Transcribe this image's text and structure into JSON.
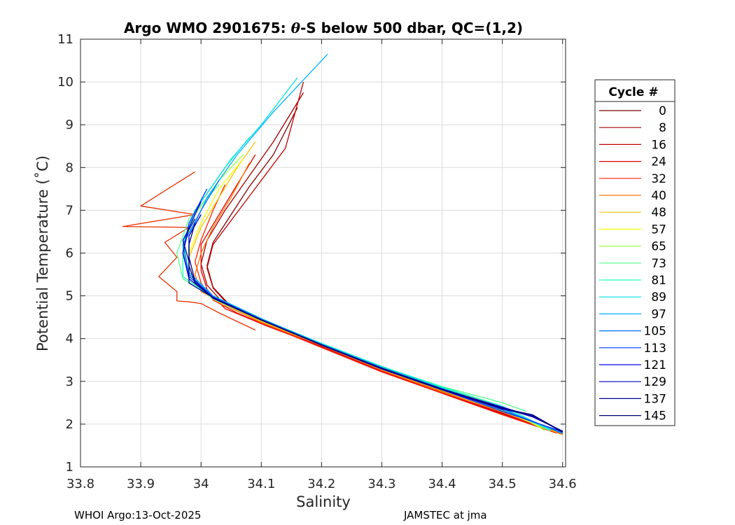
{
  "chart_data": {
    "type": "line",
    "title_parts": [
      "Argo WMO 2901675: ",
      "θ",
      "-S below 500 dbar,  QC=(1,2)"
    ],
    "xlabel": "Salinity",
    "ylabel": "Potential Temperature (˚C)",
    "xlim": [
      33.8,
      34.605
    ],
    "ylim": [
      1,
      11
    ],
    "xticks": [
      33.8,
      33.9,
      34.0,
      34.1,
      34.2,
      34.3,
      34.4,
      34.5,
      34.6
    ],
    "xtick_labels": [
      "33.8",
      "33.9",
      "34",
      "34.1",
      "34.2",
      "34.3",
      "34.4",
      "34.5",
      "34.6"
    ],
    "yticks": [
      1,
      2,
      3,
      4,
      5,
      6,
      7,
      8,
      9,
      10,
      11
    ],
    "ytick_labels": [
      "1",
      "2",
      "3",
      "4",
      "5",
      "6",
      "7",
      "8",
      "9",
      "10",
      "11"
    ],
    "grid": true,
    "legend": {
      "title": "Cycle #",
      "placement": "outside-right",
      "entries": [
        {
          "label": "0",
          "color": "#7f0000"
        },
        {
          "label": "8",
          "color": "#a10000"
        },
        {
          "label": "16",
          "color": "#c20000"
        },
        {
          "label": "24",
          "color": "#e40000"
        },
        {
          "label": "32",
          "color": "#ff2200"
        },
        {
          "label": "40",
          "color": "#ff7700"
        },
        {
          "label": "48",
          "color": "#ffc400"
        },
        {
          "label": "57",
          "color": "#f2ff00"
        },
        {
          "label": "65",
          "color": "#a2ff4a"
        },
        {
          "label": "73",
          "color": "#55ff8a"
        },
        {
          "label": "81",
          "color": "#1effbe"
        },
        {
          "label": "89",
          "color": "#00e3e3"
        },
        {
          "label": "97",
          "color": "#00b0ff"
        },
        {
          "label": "105",
          "color": "#0070ff"
        },
        {
          "label": "113",
          "color": "#0034ff"
        },
        {
          "label": "121",
          "color": "#0000e8"
        },
        {
          "label": "129",
          "color": "#0000c0"
        },
        {
          "label": "137",
          "color": "#00009a"
        },
        {
          "label": "145",
          "color": "#000070"
        }
      ]
    },
    "series": [
      {
        "color": "#7f0000",
        "points": [
          [
            34.6,
            1.76
          ],
          [
            34.5,
            2.23
          ],
          [
            34.4,
            2.73
          ],
          [
            34.3,
            3.23
          ],
          [
            34.2,
            3.8
          ],
          [
            34.12,
            4.3
          ],
          [
            34.05,
            4.75
          ],
          [
            34.02,
            5.2
          ],
          [
            34.01,
            5.7
          ],
          [
            34.02,
            6.25
          ],
          [
            34.05,
            6.9
          ],
          [
            34.08,
            7.55
          ],
          [
            34.12,
            8.3
          ],
          [
            34.16,
            9.4
          ]
        ]
      },
      {
        "color": "#a10000",
        "points": [
          [
            34.6,
            1.78
          ],
          [
            34.5,
            2.26
          ],
          [
            34.4,
            2.76
          ],
          [
            34.3,
            3.26
          ],
          [
            34.2,
            3.83
          ],
          [
            34.11,
            4.32
          ],
          [
            34.04,
            4.78
          ],
          [
            34.01,
            5.25
          ],
          [
            34.0,
            5.75
          ],
          [
            34.01,
            6.3
          ],
          [
            34.04,
            7.0
          ],
          [
            34.08,
            7.8
          ],
          [
            34.12,
            8.6
          ],
          [
            34.17,
            9.75
          ]
        ]
      },
      {
        "color": "#c20000",
        "points": [
          [
            34.59,
            1.8
          ],
          [
            34.5,
            2.25
          ],
          [
            34.4,
            2.74
          ],
          [
            34.3,
            3.24
          ],
          [
            34.2,
            3.82
          ],
          [
            34.12,
            4.28
          ],
          [
            34.05,
            4.72
          ],
          [
            34.02,
            5.18
          ],
          [
            34.01,
            5.65
          ],
          [
            34.02,
            6.2
          ],
          [
            34.06,
            6.95
          ],
          [
            34.1,
            7.7
          ],
          [
            34.14,
            8.45
          ],
          [
            34.17,
            10.0
          ]
        ]
      },
      {
        "color": "#e40000",
        "points": [
          [
            34.6,
            1.77
          ],
          [
            34.5,
            2.24
          ],
          [
            34.4,
            2.75
          ],
          [
            34.3,
            3.25
          ],
          [
            34.2,
            3.81
          ],
          [
            34.11,
            4.29
          ],
          [
            34.04,
            4.7
          ],
          [
            34.01,
            5.15
          ],
          [
            34.0,
            5.6
          ],
          [
            34.0,
            6.2
          ],
          [
            34.03,
            6.9
          ],
          [
            34.06,
            7.6
          ],
          [
            34.09,
            8.3
          ]
        ]
      },
      {
        "color": "#ff2200",
        "points": [
          [
            34.59,
            1.79
          ],
          [
            34.5,
            2.22
          ],
          [
            34.4,
            2.72
          ],
          [
            34.3,
            3.22
          ],
          [
            34.2,
            3.79
          ],
          [
            34.12,
            4.25
          ],
          [
            34.06,
            4.6
          ],
          [
            34.02,
            4.9
          ],
          [
            34.0,
            5.3
          ],
          [
            33.99,
            5.8
          ],
          [
            34.0,
            6.3
          ],
          [
            34.02,
            7.0
          ],
          [
            34.04,
            7.6
          ]
        ]
      },
      {
        "color": "#e83000",
        "points": [
          [
            34.09,
            4.2
          ],
          [
            34.03,
            4.6
          ],
          [
            34.0,
            4.82
          ],
          [
            33.98,
            4.86
          ],
          [
            33.96,
            4.88
          ],
          [
            33.96,
            5.1
          ],
          [
            33.93,
            5.45
          ],
          [
            33.96,
            5.9
          ],
          [
            33.94,
            6.25
          ],
          [
            33.98,
            6.6
          ],
          [
            33.87,
            6.62
          ],
          [
            33.99,
            6.9
          ],
          [
            33.9,
            7.1
          ],
          [
            33.99,
            7.9
          ]
        ]
      },
      {
        "color": "#ff7700",
        "points": [
          [
            34.6,
            1.76
          ],
          [
            34.5,
            2.28
          ],
          [
            34.4,
            2.75
          ],
          [
            34.3,
            3.26
          ],
          [
            34.2,
            3.84
          ],
          [
            34.1,
            4.38
          ],
          [
            34.04,
            4.8
          ],
          [
            34.0,
            5.1
          ],
          [
            33.99,
            5.5
          ],
          [
            34.0,
            6.0
          ],
          [
            34.02,
            6.6
          ],
          [
            34.05,
            7.3
          ],
          [
            34.08,
            8.1
          ]
        ]
      },
      {
        "color": "#ffc400",
        "points": [
          [
            34.59,
            1.81
          ],
          [
            34.5,
            2.3
          ],
          [
            34.4,
            2.78
          ],
          [
            34.3,
            3.28
          ],
          [
            34.2,
            3.85
          ],
          [
            34.1,
            4.4
          ],
          [
            34.03,
            4.85
          ],
          [
            33.99,
            5.3
          ],
          [
            33.98,
            5.9
          ],
          [
            34.0,
            6.6
          ],
          [
            34.03,
            7.3
          ],
          [
            34.06,
            8.0
          ],
          [
            34.09,
            8.6
          ]
        ]
      },
      {
        "color": "#f2ff00",
        "points": [
          [
            34.58,
            1.84
          ],
          [
            34.5,
            2.32
          ],
          [
            34.4,
            2.8
          ],
          [
            34.3,
            3.3
          ],
          [
            34.2,
            3.86
          ],
          [
            34.1,
            4.42
          ],
          [
            34.03,
            4.88
          ],
          [
            33.98,
            5.35
          ],
          [
            33.98,
            6.0
          ],
          [
            34.0,
            6.7
          ],
          [
            34.03,
            7.5
          ],
          [
            34.07,
            8.2
          ]
        ]
      },
      {
        "color": "#a2ff4a",
        "points": [
          [
            34.57,
            1.86
          ],
          [
            34.5,
            2.4
          ],
          [
            34.4,
            2.86
          ],
          [
            34.3,
            3.33
          ],
          [
            34.2,
            3.87
          ],
          [
            34.1,
            4.43
          ],
          [
            34.02,
            4.92
          ],
          [
            33.98,
            5.4
          ],
          [
            33.97,
            6.1
          ],
          [
            33.99,
            6.9
          ],
          [
            34.03,
            7.7
          ],
          [
            34.07,
            8.3
          ]
        ]
      },
      {
        "color": "#55ff8a",
        "points": [
          [
            34.54,
            2.3
          ],
          [
            34.5,
            2.5
          ],
          [
            34.4,
            2.88
          ],
          [
            34.3,
            3.34
          ],
          [
            34.2,
            3.88
          ],
          [
            34.1,
            4.45
          ],
          [
            34.02,
            4.95
          ],
          [
            33.97,
            5.4
          ],
          [
            33.96,
            6.0
          ],
          [
            33.98,
            6.8
          ],
          [
            34.03,
            7.6
          ]
        ]
      },
      {
        "color": "#1effbe",
        "points": [
          [
            34.58,
            1.87
          ],
          [
            34.5,
            2.42
          ],
          [
            34.4,
            2.87
          ],
          [
            34.3,
            3.35
          ],
          [
            34.2,
            3.89
          ],
          [
            34.1,
            4.46
          ],
          [
            34.02,
            4.96
          ],
          [
            33.97,
            5.45
          ],
          [
            33.97,
            6.2
          ],
          [
            33.99,
            7.0
          ],
          [
            34.04,
            8.0
          ],
          [
            34.08,
            8.7
          ]
        ]
      },
      {
        "color": "#00e3e3",
        "points": [
          [
            34.58,
            1.85
          ],
          [
            34.5,
            2.38
          ],
          [
            34.4,
            2.85
          ],
          [
            34.3,
            3.34
          ],
          [
            34.2,
            3.88
          ],
          [
            34.1,
            4.46
          ],
          [
            34.02,
            4.98
          ],
          [
            33.98,
            5.5
          ],
          [
            33.97,
            6.3
          ],
          [
            34.0,
            7.2
          ],
          [
            34.05,
            8.2
          ],
          [
            34.1,
            9.0
          ],
          [
            34.16,
            10.1
          ]
        ]
      },
      {
        "color": "#00b0ff",
        "points": [
          [
            34.6,
            1.78
          ],
          [
            34.5,
            2.36
          ],
          [
            34.4,
            2.84
          ],
          [
            34.3,
            3.33
          ],
          [
            34.2,
            3.87
          ],
          [
            34.1,
            4.47
          ],
          [
            34.02,
            5.0
          ],
          [
            33.98,
            5.55
          ],
          [
            33.98,
            6.4
          ],
          [
            34.01,
            7.3
          ],
          [
            34.06,
            8.3
          ],
          [
            34.12,
            9.3
          ],
          [
            34.21,
            10.65
          ]
        ]
      },
      {
        "color": "#0070ff",
        "points": [
          [
            34.6,
            1.8
          ],
          [
            34.5,
            2.33
          ],
          [
            34.4,
            2.82
          ],
          [
            34.3,
            3.3
          ],
          [
            34.2,
            3.86
          ],
          [
            34.1,
            4.45
          ],
          [
            34.02,
            4.98
          ],
          [
            33.98,
            5.5
          ],
          [
            33.97,
            6.2
          ],
          [
            34.0,
            7.0
          ],
          [
            34.03,
            7.7
          ]
        ]
      },
      {
        "color": "#0034ff",
        "points": [
          [
            34.6,
            1.82
          ],
          [
            34.5,
            2.3
          ],
          [
            34.4,
            2.8
          ],
          [
            34.3,
            3.29
          ],
          [
            34.2,
            3.85
          ],
          [
            34.1,
            4.44
          ],
          [
            34.02,
            4.97
          ],
          [
            33.98,
            5.45
          ],
          [
            33.97,
            6.0
          ],
          [
            33.98,
            6.7
          ],
          [
            34.01,
            7.5
          ]
        ]
      },
      {
        "color": "#0000e8",
        "points": [
          [
            34.6,
            1.83
          ],
          [
            34.55,
            2.18
          ],
          [
            34.5,
            2.4
          ],
          [
            34.4,
            2.82
          ],
          [
            34.3,
            3.3
          ],
          [
            34.2,
            3.85
          ],
          [
            34.1,
            4.43
          ],
          [
            34.02,
            4.95
          ],
          [
            33.98,
            5.4
          ],
          [
            33.97,
            6.0
          ],
          [
            33.98,
            6.6
          ],
          [
            34.0,
            7.2
          ]
        ]
      },
      {
        "color": "#0000c0",
        "points": [
          [
            34.6,
            1.81
          ],
          [
            34.55,
            2.2
          ],
          [
            34.5,
            2.35
          ],
          [
            34.4,
            2.8
          ],
          [
            34.3,
            3.29
          ],
          [
            34.2,
            3.85
          ],
          [
            34.1,
            4.43
          ],
          [
            34.02,
            4.94
          ],
          [
            33.99,
            5.35
          ],
          [
            33.98,
            5.9
          ],
          [
            33.98,
            6.4
          ],
          [
            34.0,
            6.9
          ]
        ]
      },
      {
        "color": "#00009a",
        "points": [
          [
            34.6,
            1.84
          ],
          [
            34.55,
            2.17
          ],
          [
            34.5,
            2.38
          ],
          [
            34.4,
            2.81
          ],
          [
            34.3,
            3.3
          ],
          [
            34.2,
            3.86
          ],
          [
            34.1,
            4.44
          ],
          [
            34.02,
            4.96
          ],
          [
            33.98,
            5.3
          ],
          [
            33.98,
            5.8
          ],
          [
            33.97,
            6.3
          ],
          [
            33.99,
            6.8
          ]
        ]
      },
      {
        "color": "#000070",
        "points": [
          [
            34.6,
            1.82
          ],
          [
            34.55,
            2.22
          ],
          [
            34.5,
            2.37
          ],
          [
            34.4,
            2.82
          ],
          [
            34.3,
            3.31
          ],
          [
            34.2,
            3.86
          ],
          [
            34.1,
            4.44
          ],
          [
            34.02,
            4.95
          ],
          [
            33.99,
            5.3
          ],
          [
            33.98,
            5.7
          ],
          [
            33.98,
            6.2
          ],
          [
            33.99,
            6.7
          ]
        ]
      }
    ]
  },
  "footer": {
    "left": "WHOI Argo:13-Oct-2025",
    "right": "JAMSTEC at jma"
  }
}
